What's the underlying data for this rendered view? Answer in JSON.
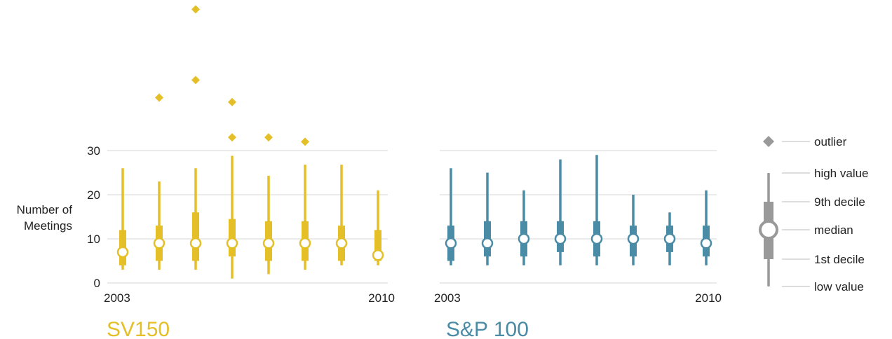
{
  "chart_data": [
    {
      "type": "boxplot",
      "panel_title": "SV150",
      "color": "#E4BF28",
      "ylabel": "Number of Meetings",
      "ylim": [
        0,
        30
      ],
      "yticks": [
        0,
        10,
        20,
        30
      ],
      "x_tick_labels": [
        "2003",
        "2010"
      ],
      "categories": [
        "2003",
        "2004",
        "2005",
        "2006",
        "2007",
        "2008",
        "2009",
        "2010"
      ],
      "stats": [
        {
          "low": 3,
          "d1": 4,
          "median": 7,
          "d9": 12,
          "high": 26,
          "outliers": []
        },
        {
          "low": 3,
          "d1": 5,
          "median": 9,
          "d9": 13,
          "high": 23,
          "outliers": [
            42
          ]
        },
        {
          "low": 3,
          "d1": 5,
          "median": 9,
          "d9": 16,
          "high": 26,
          "outliers": [
            46,
            62
          ]
        },
        {
          "low": 1,
          "d1": 6,
          "median": 9,
          "d9": 14.5,
          "high": 28.8,
          "outliers": [
            33,
            41
          ]
        },
        {
          "low": 2,
          "d1": 5,
          "median": 9,
          "d9": 14,
          "high": 24.3,
          "outliers": [
            33
          ]
        },
        {
          "low": 3,
          "d1": 5,
          "median": 9,
          "d9": 14,
          "high": 26.8,
          "outliers": [
            32
          ]
        },
        {
          "low": 4,
          "d1": 5,
          "median": 9,
          "d9": 13,
          "high": 26.8,
          "outliers": []
        },
        {
          "low": 4,
          "d1": 5,
          "median": 6.3,
          "d9": 12,
          "high": 21,
          "outliers": []
        }
      ]
    },
    {
      "type": "boxplot",
      "panel_title": "S&P 100",
      "color": "#4A8BA6",
      "ylim": [
        0,
        30
      ],
      "x_tick_labels": [
        "2003",
        "2010"
      ],
      "categories": [
        "2003",
        "2004",
        "2005",
        "2006",
        "2007",
        "2008",
        "2009",
        "2010"
      ],
      "stats": [
        {
          "low": 4,
          "d1": 5,
          "median": 9,
          "d9": 13,
          "high": 26,
          "outliers": []
        },
        {
          "low": 4,
          "d1": 6,
          "median": 9,
          "d9": 14,
          "high": 25,
          "outliers": []
        },
        {
          "low": 4,
          "d1": 6,
          "median": 10,
          "d9": 14,
          "high": 21,
          "outliers": []
        },
        {
          "low": 4,
          "d1": 7,
          "median": 10,
          "d9": 14,
          "high": 28,
          "outliers": []
        },
        {
          "low": 4,
          "d1": 6,
          "median": 10,
          "d9": 14,
          "high": 29,
          "outliers": []
        },
        {
          "low": 4,
          "d1": 6,
          "median": 10,
          "d9": 13,
          "high": 20,
          "outliers": []
        },
        {
          "low": 4,
          "d1": 7,
          "median": 10,
          "d9": 13,
          "high": 16,
          "outliers": []
        },
        {
          "low": 4,
          "d1": 6,
          "median": 9,
          "d9": 13,
          "high": 21,
          "outliers": []
        }
      ]
    }
  ],
  "legend": {
    "color": "#999999",
    "outlier": "outlier",
    "high_value": "high value",
    "ninth_decile": "9th decile",
    "median": "median",
    "first_decile": "1st decile",
    "low_value": "low value"
  }
}
